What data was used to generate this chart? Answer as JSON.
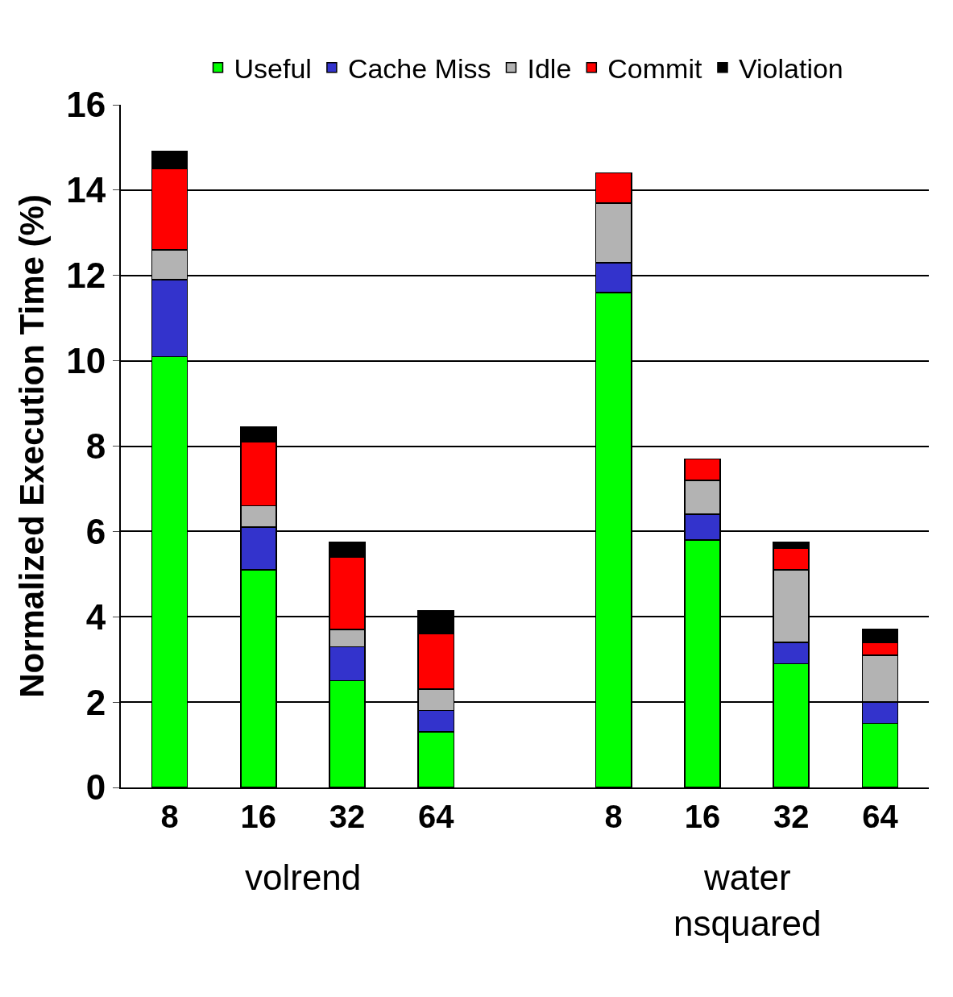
{
  "chart_data": {
    "type": "bar",
    "stacked": true,
    "ylabel": "Normalized Execution Time (%)",
    "categories": [
      "8",
      "16",
      "32",
      "64",
      null,
      "8",
      "16",
      "32",
      "64"
    ],
    "series": [
      {
        "name": "Useful",
        "color": "#00ff00",
        "values": [
          10.1,
          5.1,
          2.5,
          1.3,
          null,
          11.6,
          5.8,
          2.9,
          1.5
        ]
      },
      {
        "name": "Cache Miss",
        "color": "#3333cc",
        "values": [
          1.8,
          1.0,
          0.8,
          0.5,
          null,
          0.7,
          0.6,
          0.5,
          0.5
        ]
      },
      {
        "name": "Idle",
        "color": "#b3b3b3",
        "values": [
          0.7,
          0.5,
          0.4,
          0.5,
          null,
          1.4,
          0.8,
          1.7,
          1.1
        ]
      },
      {
        "name": "Commit",
        "color": "#ff0000",
        "values": [
          1.9,
          1.5,
          1.7,
          1.3,
          null,
          0.7,
          0.5,
          0.5,
          0.3
        ]
      },
      {
        "name": "Violation",
        "color": "#000000",
        "values": [
          0.4,
          0.35,
          0.35,
          0.55,
          null,
          0,
          0,
          0.15,
          0.3
        ]
      }
    ],
    "ylim": [
      0,
      16
    ],
    "yticks": [
      0,
      2,
      4,
      6,
      8,
      10,
      12,
      14,
      16
    ],
    "grid": "y",
    "legend": "top",
    "annotations": [
      "volrend",
      "water\nnsquared"
    ]
  }
}
